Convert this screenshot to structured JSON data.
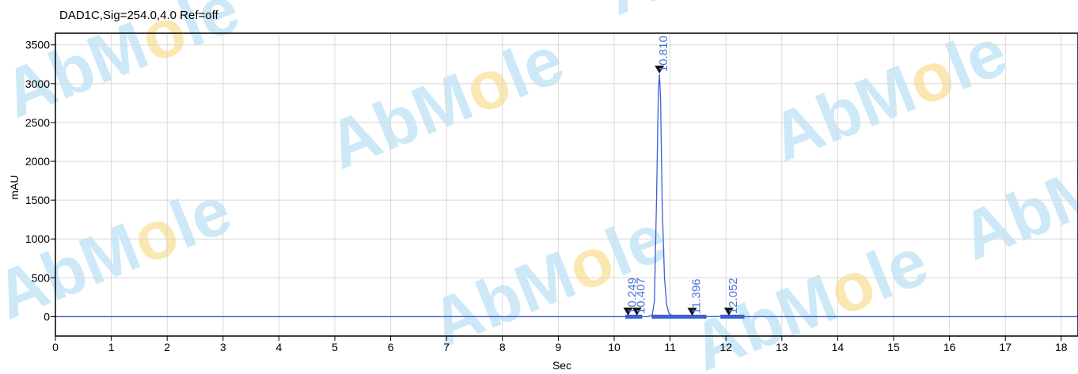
{
  "chart_data": {
    "type": "line",
    "title": "DAD1C,Sig=254.0,4.0  Ref=off",
    "xlabel": "Sec",
    "ylabel": "mAU",
    "xlim": [
      0,
      18.3
    ],
    "ylim": [
      -250,
      3650
    ],
    "x_ticks": [
      "0",
      "1",
      "2",
      "3",
      "4",
      "5",
      "6",
      "7",
      "8",
      "9",
      "10",
      "11",
      "12",
      "13",
      "14",
      "15",
      "16",
      "17",
      "18"
    ],
    "y_ticks": [
      "0",
      "500",
      "1000",
      "1500",
      "2000",
      "2500",
      "3000",
      "3500"
    ],
    "grid": true,
    "series": [
      {
        "x": [
          0,
          2.3,
          10.0,
          10.2,
          10.249,
          10.3,
          10.407,
          10.5,
          10.6,
          10.68,
          10.72,
          10.76,
          10.79,
          10.81,
          10.83,
          10.86,
          10.9,
          10.94,
          10.98,
          11.05,
          11.15,
          11.396,
          11.6,
          12.052,
          12.3,
          18.3
        ],
        "y": [
          0,
          0,
          0,
          0,
          5,
          0,
          4,
          0,
          0,
          20,
          200,
          1600,
          2900,
          3120,
          2800,
          1400,
          500,
          150,
          40,
          10,
          0,
          2,
          0,
          3,
          0,
          0
        ]
      }
    ],
    "peaks": [
      {
        "label": "10.249",
        "x": 10.249,
        "y": 5
      },
      {
        "label": "10.407",
        "x": 10.407,
        "y": 4
      },
      {
        "label": "10.810",
        "x": 10.81,
        "y": 3120
      },
      {
        "label": "11.396",
        "x": 11.396,
        "y": 2
      },
      {
        "label": "12.052",
        "x": 12.052,
        "y": 3
      }
    ],
    "integration_baselines": [
      [
        10.2,
        10.5
      ],
      [
        10.67,
        11.65
      ],
      [
        11.9,
        12.33
      ]
    ],
    "colors": {
      "trace": "#3c5fd6",
      "label": "#4a73d6",
      "grid": "#d8d8d8",
      "axis": "#000000"
    }
  },
  "watermark": {
    "text_parts": [
      "AbM",
      "o",
      "le"
    ],
    "colors": [
      "#cde9f8",
      "#fbe7b0",
      "#cde9f8"
    ]
  }
}
